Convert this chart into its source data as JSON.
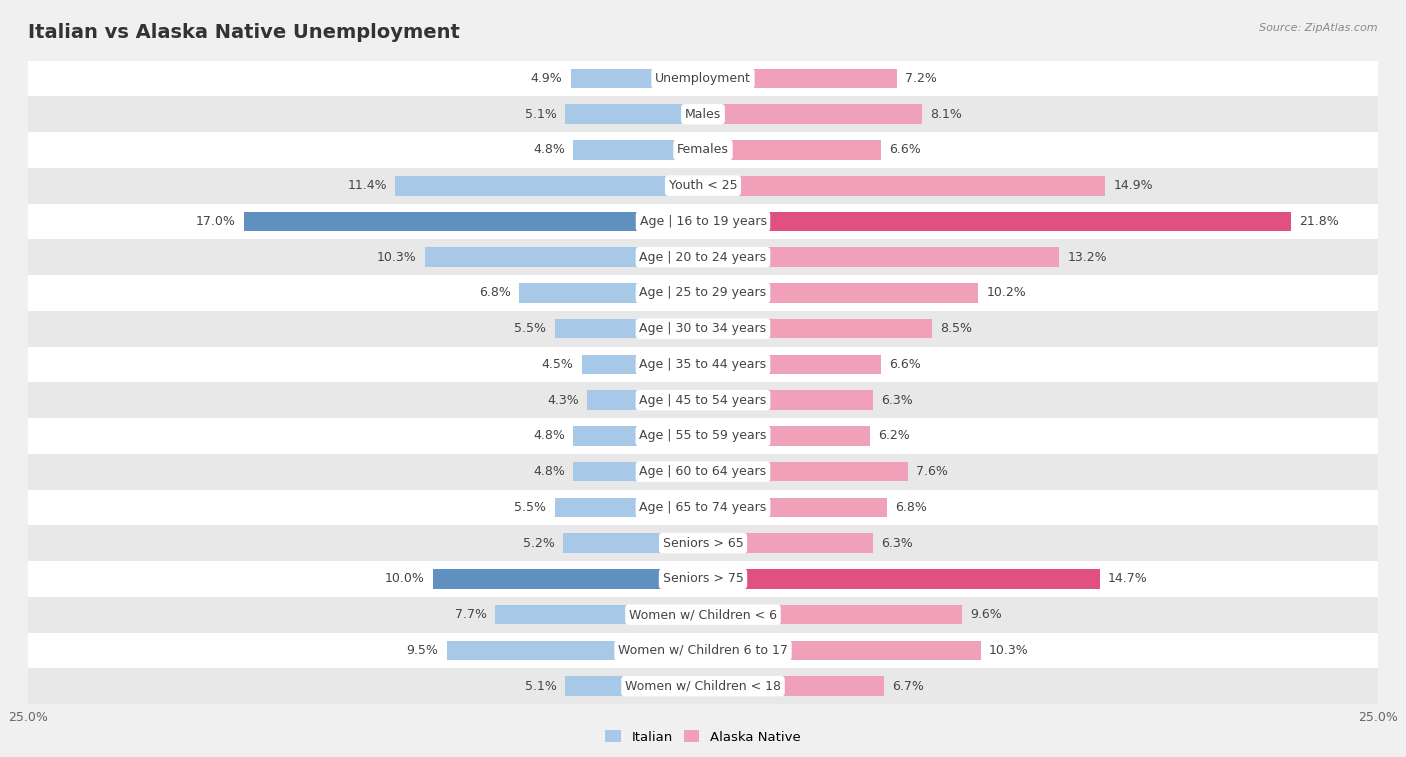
{
  "title": "Italian vs Alaska Native Unemployment",
  "source": "Source: ZipAtlas.com",
  "categories": [
    "Unemployment",
    "Males",
    "Females",
    "Youth < 25",
    "Age | 16 to 19 years",
    "Age | 20 to 24 years",
    "Age | 25 to 29 years",
    "Age | 30 to 34 years",
    "Age | 35 to 44 years",
    "Age | 45 to 54 years",
    "Age | 55 to 59 years",
    "Age | 60 to 64 years",
    "Age | 65 to 74 years",
    "Seniors > 65",
    "Seniors > 75",
    "Women w/ Children < 6",
    "Women w/ Children 6 to 17",
    "Women w/ Children < 18"
  ],
  "italian": [
    4.9,
    5.1,
    4.8,
    11.4,
    17.0,
    10.3,
    6.8,
    5.5,
    4.5,
    4.3,
    4.8,
    4.8,
    5.5,
    5.2,
    10.0,
    7.7,
    9.5,
    5.1
  ],
  "alaska_native": [
    7.2,
    8.1,
    6.6,
    14.9,
    21.8,
    13.2,
    10.2,
    8.5,
    6.6,
    6.3,
    6.2,
    7.6,
    6.8,
    6.3,
    14.7,
    9.6,
    10.3,
    6.7
  ],
  "italian_color": "#a8c8e8",
  "alaska_native_color": "#f0a0b8",
  "highlight_italian_color": "#6090c0",
  "highlight_alaska_color": "#e05080",
  "axis_limit": 25.0,
  "bg_color": "#f0f0f0",
  "row_bg_white": "#ffffff",
  "row_bg_gray": "#e8e8e8",
  "legend_italian": "Italian",
  "legend_alaska": "Alaska Native",
  "title_fontsize": 14,
  "label_fontsize": 9,
  "category_fontsize": 9
}
